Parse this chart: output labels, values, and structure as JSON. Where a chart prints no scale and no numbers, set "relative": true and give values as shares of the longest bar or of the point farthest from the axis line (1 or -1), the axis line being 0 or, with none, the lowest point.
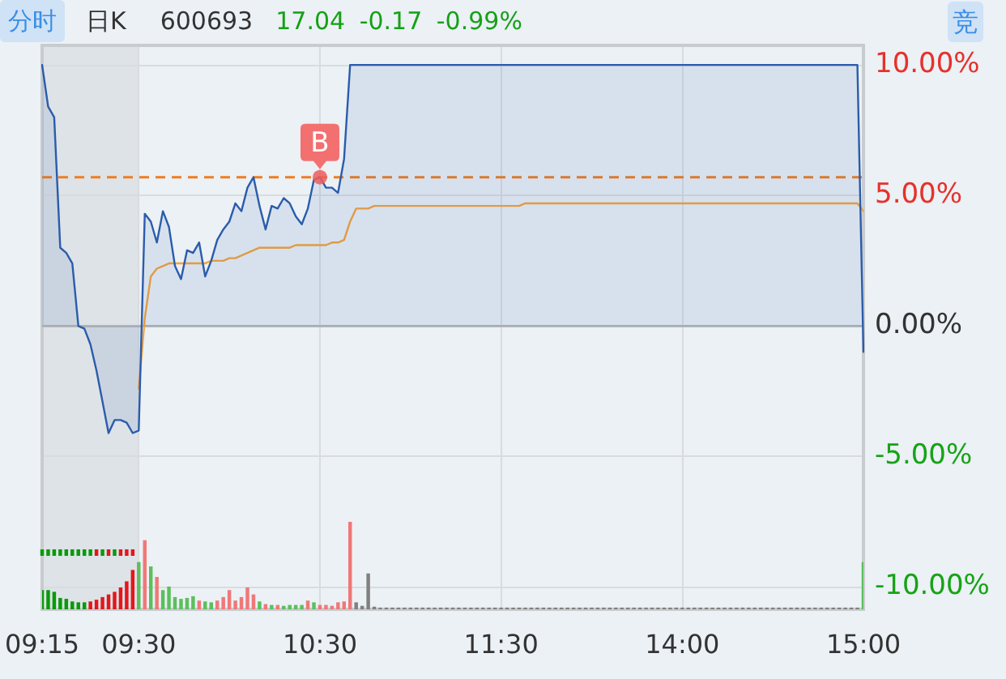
{
  "chart_data": [
    {
      "type": "line",
      "title": "600693",
      "subtitle": "17.04 -0.17 -0.99%",
      "annotations": [
        "分时",
        "日K",
        "竞",
        {
          "text": "B",
          "x": "10:30",
          "y": 5.7
        }
      ],
      "categories": [
        "09:15",
        null,
        null,
        null,
        null,
        null,
        null,
        null,
        null,
        null,
        null,
        null,
        null,
        null,
        null,
        null,
        "09:30",
        null,
        null,
        null,
        null,
        null,
        null,
        null,
        null,
        null,
        null,
        null,
        null,
        null,
        null,
        null,
        null,
        null,
        null,
        null,
        null,
        null,
        null,
        null,
        null,
        null,
        null,
        null,
        null,
        null,
        "10:30",
        null,
        null,
        null,
        null,
        null,
        null,
        null,
        null,
        null,
        null,
        null,
        null,
        null,
        null,
        null,
        null,
        null,
        null,
        null,
        null,
        null,
        null,
        null,
        null,
        null,
        null,
        null,
        null,
        null,
        "11:30",
        null,
        null,
        null,
        null,
        null,
        null,
        null,
        null,
        null,
        null,
        null,
        null,
        null,
        null,
        null,
        null,
        null,
        null,
        null,
        null,
        null,
        null,
        null,
        null,
        null,
        null,
        null,
        null,
        null,
        "14:00",
        null,
        null,
        null,
        null,
        null,
        null,
        null,
        null,
        null,
        null,
        null,
        null,
        null,
        null,
        null,
        null,
        null,
        null,
        null,
        null,
        null,
        null,
        null,
        null,
        null,
        null,
        null,
        null,
        null,
        "15:00"
      ],
      "ylim": [
        -10.85,
        10.75
      ],
      "yticks": [
        {
          "value": 10,
          "label": "10.00%"
        },
        {
          "value": 5,
          "label": "5.00%"
        },
        {
          "value": 0,
          "label": "0.00%"
        },
        {
          "value": -5,
          "label": "-5.00%"
        },
        {
          "value": -10,
          "label": "-10.00%"
        }
      ],
      "grid": true,
      "marker": "none",
      "bands": [
        {
          "axis": "x",
          "from": "09:15",
          "to": "09:30",
          "color": "#dde3e7"
        }
      ],
      "ref_lines": [
        {
          "axis": "y",
          "value": 0,
          "color": "#b3b6b9"
        },
        {
          "axis": "y",
          "value": 5.7,
          "color": "#f07d22",
          "line_style": "dashed"
        }
      ],
      "series": [
        {
          "type": "area",
          "color": "#2b5cab",
          "values": [
            10.0,
            8.4,
            8.0,
            3.0,
            2.8,
            2.4,
            0.0,
            -0.1,
            -0.7,
            -1.7,
            -2.9,
            -4.1,
            -3.6,
            -3.6,
            -3.7,
            -4.1,
            -4.0,
            4.3,
            4.0,
            3.2,
            4.4,
            3.8,
            2.3,
            1.8,
            2.9,
            2.8,
            3.2,
            1.9,
            2.5,
            3.3,
            3.7,
            4.0,
            4.7,
            4.4,
            5.3,
            5.7,
            4.6,
            3.7,
            4.6,
            4.5,
            4.9,
            4.7,
            4.2,
            3.9,
            4.5,
            5.6,
            5.7,
            5.3,
            5.3,
            5.1,
            6.4,
            10.0,
            10.0,
            10.0,
            10.0,
            10.0,
            10.0,
            10.0,
            10.0,
            10.0,
            10.0,
            10.0,
            10.0,
            10.0,
            10.0,
            10.0,
            10.0,
            10.0,
            10.0,
            10.0,
            10.0,
            10.0,
            10.0,
            10.0,
            10.0,
            10.0,
            10.0,
            10.0,
            10.0,
            10.0,
            10.0,
            10.0,
            10.0,
            10.0,
            10.0,
            10.0,
            10.0,
            10.0,
            10.0,
            10.0,
            10.0,
            10.0,
            10.0,
            10.0,
            10.0,
            10.0,
            10.0,
            10.0,
            10.0,
            10.0,
            10.0,
            10.0,
            10.0,
            10.0,
            10.0,
            10.0,
            10.0,
            10.0,
            10.0,
            10.0,
            10.0,
            10.0,
            10.0,
            10.0,
            10.0,
            10.0,
            10.0,
            10.0,
            10.0,
            10.0,
            10.0,
            10.0,
            10.0,
            10.0,
            10.0,
            10.0,
            10.0,
            10.0,
            10.0,
            10.0,
            10.0,
            10.0,
            10.0,
            10.0,
            10.0,
            10.0,
            -0.99
          ]
        },
        {
          "type": "line",
          "color": "#f5a33a",
          "values": [
            null,
            null,
            null,
            null,
            null,
            null,
            null,
            null,
            null,
            null,
            null,
            null,
            null,
            null,
            null,
            null,
            -2.4,
            0.3,
            1.9,
            2.2,
            2.3,
            2.4,
            2.4,
            2.4,
            2.4,
            2.4,
            2.4,
            2.4,
            2.5,
            2.5,
            2.5,
            2.6,
            2.6,
            2.7,
            2.8,
            2.9,
            3.0,
            3.0,
            3.0,
            3.0,
            3.0,
            3.0,
            3.1,
            3.1,
            3.1,
            3.1,
            3.1,
            3.1,
            3.2,
            3.2,
            3.3,
            4.0,
            4.5,
            4.5,
            4.5,
            4.6,
            4.6,
            4.6,
            4.6,
            4.6,
            4.6,
            4.6,
            4.6,
            4.6,
            4.6,
            4.6,
            4.6,
            4.6,
            4.6,
            4.6,
            4.6,
            4.6,
            4.6,
            4.6,
            4.6,
            4.6,
            4.6,
            4.6,
            4.6,
            4.6,
            4.7,
            4.7,
            4.7,
            4.7,
            4.7,
            4.7,
            4.7,
            4.7,
            4.7,
            4.7,
            4.7,
            4.7,
            4.7,
            4.7,
            4.7,
            4.7,
            4.7,
            4.7,
            4.7,
            4.7,
            4.7,
            4.7,
            4.7,
            4.7,
            4.7,
            4.7,
            4.7,
            4.7,
            4.7,
            4.7,
            4.7,
            4.7,
            4.7,
            4.7,
            4.7,
            4.7,
            4.7,
            4.7,
            4.7,
            4.7,
            4.7,
            4.7,
            4.7,
            4.7,
            4.7,
            4.7,
            4.7,
            4.7,
            4.7,
            4.7,
            4.7,
            4.7,
            4.7,
            4.7,
            4.7,
            4.7,
            4.4
          ]
        }
      ]
    },
    {
      "type": "bar",
      "relative": true,
      "categories": [
        null,
        null,
        null,
        null,
        null,
        null,
        null,
        null,
        null,
        null,
        null,
        null,
        null,
        null,
        null,
        null,
        null,
        null,
        null,
        null,
        null,
        null,
        null,
        null,
        null,
        null,
        null,
        null,
        null,
        null,
        null,
        null,
        null,
        null,
        null,
        null,
        null,
        null,
        null,
        null,
        null,
        null,
        null,
        null,
        null,
        null,
        null,
        null,
        null,
        null,
        null,
        null,
        null,
        null,
        null,
        null,
        null,
        null,
        null,
        null,
        null,
        null,
        null,
        null,
        null,
        null,
        null,
        null,
        null,
        null,
        null,
        null,
        null,
        null,
        null,
        null,
        null,
        null,
        null,
        null,
        null,
        null,
        null,
        null,
        null,
        null,
        null,
        null,
        null,
        null,
        null,
        null,
        null,
        null,
        null,
        null,
        null,
        null,
        null,
        null,
        null,
        null,
        null,
        null,
        null,
        null,
        null,
        null,
        null,
        null,
        null,
        null,
        null,
        null,
        null,
        null,
        null,
        null,
        null,
        null,
        null,
        null,
        null,
        null,
        null,
        null,
        null,
        null,
        null,
        null,
        null,
        null,
        null,
        null,
        null,
        null,
        null
      ],
      "series": [
        {
          "values": [
            0.22,
            0.22,
            0.2,
            0.13,
            0.12,
            0.09,
            0.08,
            0.08,
            0.09,
            0.11,
            0.14,
            0.17,
            0.2,
            0.25,
            0.32,
            0.45,
            0.54,
            0.79,
            0.49,
            0.37,
            0.22,
            0.26,
            0.14,
            0.12,
            0.13,
            0.15,
            0.1,
            0.09,
            0.08,
            0.1,
            0.14,
            0.22,
            0.1,
            0.14,
            0.25,
            0.17,
            0.09,
            0.06,
            0.05,
            0.05,
            0.04,
            0.05,
            0.05,
            0.05,
            0.1,
            0.08,
            0.05,
            0.05,
            0.04,
            0.08,
            0.09,
            1.0,
            0.08,
            0.04,
            0.41,
            0.03,
            0.02,
            0.02,
            0.02,
            0.02,
            0.02,
            0.02,
            0.02,
            0.02,
            0.02,
            0.02,
            0.02,
            0.02,
            0.02,
            0.02,
            0.02,
            0.02,
            0.02,
            0.02,
            0.02,
            0.02,
            0.02,
            0.02,
            0.02,
            0.02,
            0.02,
            0.02,
            0.02,
            0.02,
            0.02,
            0.02,
            0.02,
            0.02,
            0.02,
            0.02,
            0.02,
            0.02,
            0.02,
            0.02,
            0.02,
            0.02,
            0.02,
            0.02,
            0.02,
            0.02,
            0.02,
            0.02,
            0.02,
            0.02,
            0.02,
            0.02,
            0.02,
            0.02,
            0.02,
            0.02,
            0.02,
            0.02,
            0.02,
            0.02,
            0.02,
            0.02,
            0.02,
            0.02,
            0.02,
            0.02,
            0.02,
            0.02,
            0.02,
            0.02,
            0.02,
            0.02,
            0.02,
            0.02,
            0.02,
            0.02,
            0.02,
            0.02,
            0.02,
            0.02,
            0.02,
            0.02,
            0.54
          ],
          "colors": [
            "#0a9a0a",
            "#0a9a0a",
            "#0a9a0a",
            "#0a9a0a",
            "#0a9a0a",
            "#0a9a0a",
            "#0a9a0a",
            "#0a9a0a",
            "#e4161c",
            "#e4161c",
            "#e4161c",
            "#e4161c",
            "#e4161c",
            "#e4161c",
            "#e4161c",
            "#e4161c",
            "#5cbf5c",
            "#f07878",
            "#5cbf5c",
            "#f07878",
            "#5cbf5c",
            "#5cbf5c",
            "#5cbf5c",
            "#5cbf5c",
            "#5cbf5c",
            "#5cbf5c",
            "#f07878",
            "#5cbf5c",
            "#5cbf5c",
            "#f07878",
            "#f07878",
            "#f07878",
            "#f07878",
            "#f07878",
            "#f07878",
            "#f07878",
            "#5cbf5c",
            "#f07878",
            "#5cbf5c",
            "#f07878",
            "#5cbf5c",
            "#5cbf5c",
            "#5cbf5c",
            "#5cbf5c",
            "#f07878",
            "#5cbf5c",
            "#f07878",
            "#f07878",
            "#f07878",
            "#f07878",
            "#f07878",
            "#f07878",
            "#808080",
            "#808080",
            "#808080",
            "#808080",
            "#808080",
            "#808080",
            "#808080",
            "#808080",
            "#808080",
            "#808080",
            "#808080",
            "#808080",
            "#808080",
            "#808080",
            "#808080",
            "#808080",
            "#808080",
            "#808080",
            "#808080",
            "#808080",
            "#808080",
            "#808080",
            "#808080",
            "#808080",
            "#808080",
            "#808080",
            "#808080",
            "#808080",
            "#808080",
            "#808080",
            "#808080",
            "#808080",
            "#808080",
            "#808080",
            "#808080",
            "#808080",
            "#808080",
            "#808080",
            "#808080",
            "#808080",
            "#808080",
            "#808080",
            "#808080",
            "#808080",
            "#808080",
            "#808080",
            "#808080",
            "#808080",
            "#808080",
            "#808080",
            "#808080",
            "#808080",
            "#808080",
            "#808080",
            "#808080",
            "#808080",
            "#808080",
            "#808080",
            "#808080",
            "#808080",
            "#808080",
            "#808080",
            "#808080",
            "#808080",
            "#808080",
            "#808080",
            "#808080",
            "#808080",
            "#808080",
            "#808080",
            "#808080",
            "#808080",
            "#808080",
            "#808080",
            "#808080",
            "#808080",
            "#808080",
            "#808080",
            "#808080",
            "#808080",
            "#808080",
            "#808080",
            "#808080",
            "#808080",
            "#5cbf5c"
          ]
        }
      ]
    },
    {
      "type": "bar",
      "relative": true,
      "categories": [
        null,
        null,
        null,
        null,
        null,
        null,
        null,
        null,
        null,
        null,
        null,
        null,
        null,
        null,
        null,
        null
      ],
      "series": [
        {
          "values": [
            1,
            1,
            1,
            1,
            1,
            1,
            1,
            1,
            1,
            1,
            1,
            1,
            1,
            1,
            1,
            1
          ],
          "colors": [
            "#0a9a0a",
            "#0a9a0a",
            "#0a9a0a",
            "#0a9a0a",
            "#0a9a0a",
            "#0a9a0a",
            "#0a9a0a",
            "#0a9a0a",
            "#0a9a0a",
            "#e4161c",
            "#0a9a0a",
            "#e4161c",
            "#0a9a0a",
            "#e4161c",
            "#e4161c",
            "#e4161c"
          ]
        }
      ]
    }
  ]
}
